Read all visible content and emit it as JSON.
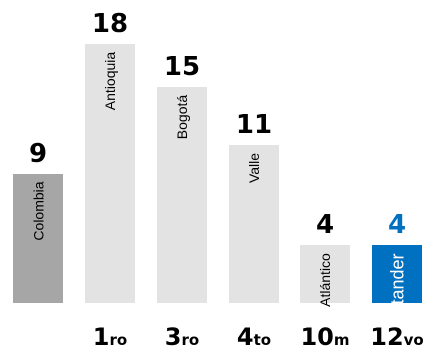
{
  "chart_data": {
    "type": "bar",
    "categories": [
      "Colombia",
      "Antioquia",
      "Bogotá",
      "Valle",
      "Atlántico",
      "Santander"
    ],
    "values": [
      9,
      18,
      15,
      11,
      4,
      4
    ],
    "ranks": [
      {
        "num": "",
        "suffix": ""
      },
      {
        "num": "1",
        "suffix": "ro"
      },
      {
        "num": "3",
        "suffix": "ro"
      },
      {
        "num": "4",
        "suffix": "to"
      },
      {
        "num": "10",
        "suffix": "m"
      },
      {
        "num": "12",
        "suffix": "vo"
      }
    ],
    "ylim": [
      0,
      18
    ],
    "colors": {
      "reference": "#a6a6a6",
      "default": "#e3e3e3",
      "highlight": "#0070c0",
      "highlight_text": "#ffffff",
      "highlight_value": "#0070c0",
      "value_text": "#000000"
    },
    "highlight_category": "Santander",
    "reference_category": "Colombia",
    "grid": false,
    "legend": "none"
  }
}
